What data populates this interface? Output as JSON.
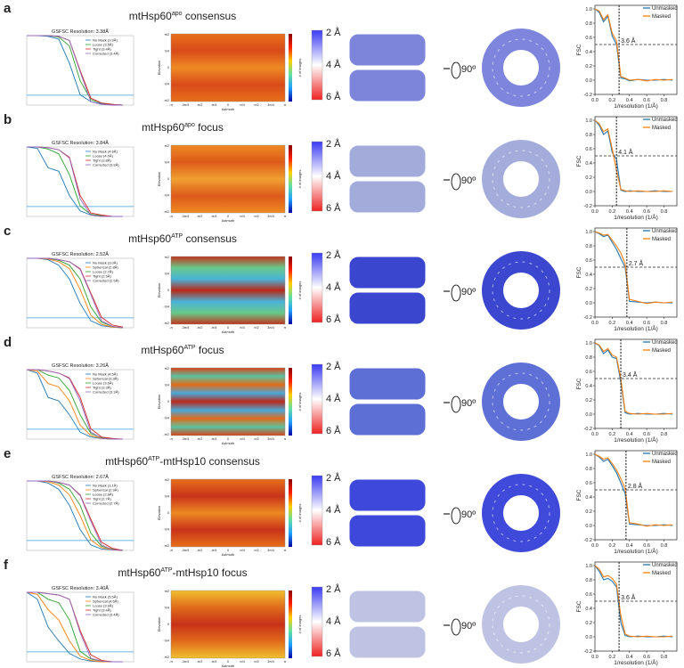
{
  "shared": {
    "gsfsc": {
      "xlim": [
        0,
        1
      ],
      "ylim": [
        0,
        1
      ],
      "x": [
        0,
        0.1,
        0.2,
        0.3,
        0.4,
        0.5,
        0.6,
        0.7,
        0.8,
        0.9
      ],
      "threshold": 0.143
    },
    "heatmap": {
      "xticks": [
        "-π",
        "-3π/4",
        "-π/2",
        "-π/4",
        "0",
        "π/4",
        "π/2",
        "3π/4",
        "π"
      ],
      "yticks": [
        "π/2",
        "π/4",
        "0",
        "-π/4",
        "-π/2"
      ],
      "xlabel": "Azimuth",
      "ylabel": "Elevation",
      "cbar_label": "# of images"
    },
    "res_colorbar": {
      "labels": [
        "2 Å",
        "4 Å",
        "6 Å"
      ],
      "colors": [
        "#3a3af2",
        "#ffffff",
        "#ee2222"
      ]
    },
    "rotation": "90º",
    "fsc": {
      "xlim": [
        0,
        0.95
      ],
      "ylim": [
        -0.2,
        1.05
      ],
      "xticks": [
        {
          "value": 0,
          "label": "0.0"
        },
        {
          "value": 0.2,
          "label": "0.2"
        },
        {
          "value": 0.4,
          "label": "0.4"
        },
        {
          "value": 0.6,
          "label": "0.6"
        },
        {
          "value": 0.8,
          "label": "0.8"
        }
      ],
      "yticks": [
        {
          "value": -0.2,
          "label": "-0.2"
        },
        {
          "value": 0,
          "label": "0.0"
        },
        {
          "value": 0.2,
          "label": "0.2"
        },
        {
          "value": 0.4,
          "label": "0.4"
        },
        {
          "value": 0.6,
          "label": "0.6"
        },
        {
          "value": 0.8,
          "label": "0.8"
        },
        {
          "value": 1,
          "label": "1.0"
        }
      ],
      "xlabel": "1/resolution (1/Å)",
      "ylabel": "FSC",
      "threshold": 0.5,
      "x": [
        0,
        0.05,
        0.1,
        0.15,
        0.2,
        0.25,
        0.3,
        0.35,
        0.4,
        0.5,
        0.6,
        0.7,
        0.8,
        0.9
      ],
      "series_names": [
        "Unmasked",
        "Masked"
      ],
      "series_colors": [
        "#1f77b4",
        "#ff7f0e"
      ]
    }
  },
  "panels": [
    {
      "letter": "a",
      "title": {
        "main": "mtHsp60",
        "sup": "apo",
        "rest": " consensus"
      },
      "gsfsc": {
        "title": "GSFSC Resolution: 3.38Å",
        "curves": [
          {
            "name": "No Mask (3.9Å)",
            "color": "#1f77b4",
            "values": [
              1,
              1,
              0.99,
              0.95,
              0.6,
              0.15,
              0.05,
              0.02,
              0.01,
              0
            ]
          },
          {
            "name": "Loose (3.5Å)",
            "color": "#2ca02c",
            "values": [
              1,
              1,
              1,
              0.98,
              0.85,
              0.35,
              0.08,
              0.03,
              0.01,
              0
            ]
          },
          {
            "name": "Tight (3.4Å)",
            "color": "#d62728",
            "values": [
              1,
              1,
              1,
              0.99,
              0.93,
              0.5,
              0.1,
              0.03,
              0.01,
              0
            ]
          },
          {
            "name": "Corrected (3.4Å)",
            "color": "#9467bd",
            "values": [
              1,
              1,
              1,
              0.99,
              0.93,
              0.48,
              0.05,
              0.01,
              0,
              0
            ]
          }
        ]
      },
      "heatmap_colors": [
        "#e8701a",
        "#d94a1a",
        "#ee8a22",
        "#d94a1a",
        "#e8701a"
      ],
      "map_color": "#6f78d8",
      "fsc": {
        "resolution": "3.6 Å",
        "cutoff": 0.28,
        "unmasked": [
          1,
          0.95,
          0.82,
          0.9,
          0.62,
          0.5,
          0.03,
          0.02,
          -0.01,
          0.01,
          0,
          0,
          0.01,
          0
        ],
        "masked": [
          1,
          0.97,
          0.85,
          0.92,
          0.66,
          0.55,
          0.05,
          0.03,
          0,
          0.01,
          -0.01,
          0.01,
          0,
          0.01
        ]
      }
    },
    {
      "letter": "b",
      "title": {
        "main": "mtHsp60",
        "sup": "apo",
        "rest": " focus"
      },
      "gsfsc": {
        "title": "GSFSC Resolution: 3.84Å",
        "curves": [
          {
            "name": "No Mask (4.6Å)",
            "color": "#1f77b4",
            "values": [
              1,
              0.98,
              0.7,
              0.65,
              0.3,
              0.08,
              0.02,
              0.01,
              0,
              0
            ]
          },
          {
            "name": "Loose (4.0Å)",
            "color": "#2ca02c",
            "values": [
              1,
              1,
              0.97,
              0.9,
              0.6,
              0.15,
              0.03,
              0.01,
              0,
              0
            ]
          },
          {
            "name": "Tight (3.8Å)",
            "color": "#d62728",
            "values": [
              1,
              1,
              0.99,
              0.96,
              0.85,
              0.3,
              0.05,
              0.02,
              0,
              0
            ]
          },
          {
            "name": "Corrected (3.8Å)",
            "color": "#9467bd",
            "values": [
              1,
              1,
              0.99,
              0.96,
              0.84,
              0.25,
              0.02,
              0,
              0,
              0
            ]
          }
        ]
      },
      "heatmap_colors": [
        "#ee8a22",
        "#dd5a1a",
        "#f0a030",
        "#dd5a1a",
        "#ee8a22"
      ],
      "map_color": "#9aa3d8",
      "fsc": {
        "resolution": "4.1 Å",
        "cutoff": 0.25,
        "unmasked": [
          1,
          0.93,
          0.8,
          0.85,
          0.55,
          0.45,
          0.02,
          0,
          0.01,
          0,
          0,
          0.01,
          0,
          0
        ],
        "masked": [
          1,
          0.95,
          0.84,
          0.88,
          0.6,
          0.3,
          0.03,
          0.01,
          0,
          0.01,
          0,
          0,
          0.01,
          0
        ]
      }
    },
    {
      "letter": "c",
      "title": {
        "main": "mtHsp60",
        "sup": "ATP",
        "rest": " consensus"
      },
      "gsfsc": {
        "title": "GSFSC Resolution: 2.52Å",
        "curves": [
          {
            "name": "No Mask (3.0Å)",
            "color": "#1f77b4",
            "values": [
              1,
              1,
              0.98,
              0.9,
              0.7,
              0.35,
              0.1,
              0.03,
              0.01,
              0
            ]
          },
          {
            "name": "Spherical (2.8Å)",
            "color": "#ff7f0e",
            "values": [
              1,
              1,
              0.99,
              0.95,
              0.85,
              0.55,
              0.18,
              0.05,
              0.01,
              0
            ]
          },
          {
            "name": "Loose (2.7Å)",
            "color": "#2ca02c",
            "values": [
              1,
              1,
              1,
              0.97,
              0.9,
              0.7,
              0.3,
              0.08,
              0.02,
              0
            ]
          },
          {
            "name": "Tight (2.5Å)",
            "color": "#d62728",
            "values": [
              1,
              1,
              1,
              0.98,
              0.95,
              0.85,
              0.5,
              0.15,
              0.04,
              0.01
            ]
          },
          {
            "name": "Corrected (2.5Å)",
            "color": "#9467bd",
            "values": [
              1,
              1,
              1,
              0.98,
              0.95,
              0.84,
              0.48,
              0.1,
              0.02,
              0
            ]
          }
        ]
      },
      "heatmap_colors": [
        "#c2331b",
        "#68c98a",
        "#49b3d8",
        "#b82a1a",
        "#49b3d8",
        "#68c98a",
        "#c2331b"
      ],
      "map_color": "#2533c9",
      "fsc": {
        "resolution": "2.7 Å",
        "cutoff": 0.37,
        "unmasked": [
          1,
          0.97,
          0.93,
          0.95,
          0.85,
          0.75,
          0.62,
          0.5,
          0.02,
          0.01,
          0,
          0.01,
          0,
          0
        ],
        "masked": [
          1,
          0.98,
          0.95,
          0.96,
          0.88,
          0.8,
          0.7,
          0.55,
          0.05,
          0.02,
          -0.01,
          0.01,
          0,
          0.01
        ]
      }
    },
    {
      "letter": "d",
      "title": {
        "main": "mtHsp60",
        "sup": "ATP",
        "rest": " focus"
      },
      "gsfsc": {
        "title": "GSFSC Resolution: 3.26Å",
        "curves": [
          {
            "name": "No Mask (4.5Å)",
            "color": "#1f77b4",
            "values": [
              1,
              0.95,
              0.6,
              0.55,
              0.35,
              0.1,
              0.03,
              0.01,
              0,
              0
            ]
          },
          {
            "name": "Spherical (3.9Å)",
            "color": "#ff7f0e",
            "values": [
              1,
              0.98,
              0.8,
              0.75,
              0.55,
              0.2,
              0.05,
              0.01,
              0,
              0
            ]
          },
          {
            "name": "Loose (3.6Å)",
            "color": "#2ca02c",
            "values": [
              1,
              1,
              0.92,
              0.88,
              0.7,
              0.35,
              0.08,
              0.02,
              0,
              0
            ]
          },
          {
            "name": "Tight (3.3Å)",
            "color": "#d62728",
            "values": [
              1,
              1,
              0.98,
              0.95,
              0.88,
              0.6,
              0.15,
              0.03,
              0.01,
              0
            ]
          },
          {
            "name": "Corrected (3.3Å)",
            "color": "#9467bd",
            "values": [
              1,
              1,
              0.98,
              0.95,
              0.87,
              0.55,
              0.1,
              0.01,
              0,
              0
            ]
          }
        ]
      },
      "heatmap_colors": [
        "#d8421a",
        "#5cc2a0",
        "#e06a1a",
        "#4aa8d8",
        "#b82a1a",
        "#4aa8d8",
        "#e06a1a",
        "#5cc2a0",
        "#d8421a"
      ],
      "map_color": "#4c5fd0",
      "fsc": {
        "resolution": "3.4 Å",
        "cutoff": 0.3,
        "unmasked": [
          1,
          0.96,
          0.85,
          0.9,
          0.8,
          0.78,
          0.45,
          0.02,
          0,
          0.01,
          0,
          0,
          0.01,
          0
        ],
        "masked": [
          1,
          0.97,
          0.88,
          0.92,
          0.83,
          0.8,
          0.5,
          0.04,
          0.01,
          0,
          0.01,
          0,
          0,
          0.01
        ]
      }
    },
    {
      "letter": "e",
      "title": {
        "main": "mtHsp60",
        "sup": "ATP",
        "rest": "-mtHsp10 consensus"
      },
      "gsfsc": {
        "title": "GSFSC Resolution: 2.67Å",
        "curves": [
          {
            "name": "No Mask (3.1Å)",
            "color": "#1f77b4",
            "values": [
              1,
              1,
              0.97,
              0.88,
              0.65,
              0.3,
              0.08,
              0.02,
              0.01,
              0
            ]
          },
          {
            "name": "Spherical (2.9Å)",
            "color": "#ff7f0e",
            "values": [
              1,
              1,
              0.99,
              0.94,
              0.8,
              0.5,
              0.15,
              0.04,
              0.01,
              0
            ]
          },
          {
            "name": "Loose (2.8Å)",
            "color": "#2ca02c",
            "values": [
              1,
              1,
              1,
              0.97,
              0.88,
              0.65,
              0.25,
              0.06,
              0.02,
              0
            ]
          },
          {
            "name": "Tight (2.7Å)",
            "color": "#d62728",
            "values": [
              1,
              1,
              1,
              0.98,
              0.94,
              0.8,
              0.45,
              0.12,
              0.03,
              0
            ]
          },
          {
            "name": "Corrected (2.7Å)",
            "color": "#9467bd",
            "values": [
              1,
              1,
              1,
              0.98,
              0.94,
              0.79,
              0.42,
              0.08,
              0.01,
              0
            ]
          }
        ]
      },
      "heatmap_colors": [
        "#e8701a",
        "#c8321a",
        "#ee8a22",
        "#c8321a",
        "#e8701a"
      ],
      "map_color": "#2a35d6",
      "fsc": {
        "resolution": "2.8 Å",
        "cutoff": 0.36,
        "unmasked": [
          1,
          0.96,
          0.9,
          0.93,
          0.84,
          0.74,
          0.6,
          0.45,
          0.02,
          0.01,
          0,
          0,
          0.01,
          0
        ],
        "masked": [
          1,
          0.97,
          0.93,
          0.95,
          0.87,
          0.78,
          0.66,
          0.52,
          0.04,
          0.02,
          -0.01,
          0.01,
          0,
          0.01
        ]
      }
    },
    {
      "letter": "f",
      "title": {
        "main": "mtHsp60",
        "sup": "ATP",
        "rest": "-mtHsp10 focus"
      },
      "gsfsc": {
        "title": "GSFSC Resolution: 3.40Å",
        "curves": [
          {
            "name": "No Mask (5.5Å)",
            "color": "#1f77b4",
            "values": [
              1,
              0.9,
              0.5,
              0.3,
              0.12,
              0.04,
              0.01,
              0,
              0,
              0
            ]
          },
          {
            "name": "Spherical (4.6Å)",
            "color": "#ff7f0e",
            "values": [
              1,
              0.97,
              0.75,
              0.6,
              0.3,
              0.08,
              0.02,
              0,
              0,
              0
            ]
          },
          {
            "name": "Loose (3.9Å)",
            "color": "#2ca02c",
            "values": [
              1,
              1,
              0.9,
              0.85,
              0.6,
              0.15,
              0.04,
              0.01,
              0,
              0
            ]
          },
          {
            "name": "Tight (3.4Å)",
            "color": "#d62728",
            "values": [
              1,
              1,
              0.98,
              0.96,
              0.9,
              0.45,
              0.1,
              0.02,
              0,
              0
            ]
          },
          {
            "name": "Corrected (3.4Å)",
            "color": "#9467bd",
            "values": [
              1,
              1,
              0.98,
              0.96,
              0.9,
              0.42,
              0.05,
              0.01,
              0,
              0
            ]
          }
        ]
      },
      "heatmap_colors": [
        "#f0c030",
        "#e06a1a",
        "#c8321a",
        "#e06a1a",
        "#f0c030"
      ],
      "map_color": "#b8bde0",
      "fsc": {
        "resolution": "3.6 Å",
        "cutoff": 0.28,
        "unmasked": [
          1,
          0.92,
          0.8,
          0.82,
          0.78,
          0.7,
          0.2,
          0.02,
          0,
          0.01,
          0,
          0,
          0.01,
          0
        ],
        "masked": [
          1,
          0.95,
          0.84,
          0.86,
          0.82,
          0.74,
          0.3,
          0.04,
          0.01,
          0,
          0.01,
          0,
          0,
          0.01
        ]
      }
    }
  ]
}
